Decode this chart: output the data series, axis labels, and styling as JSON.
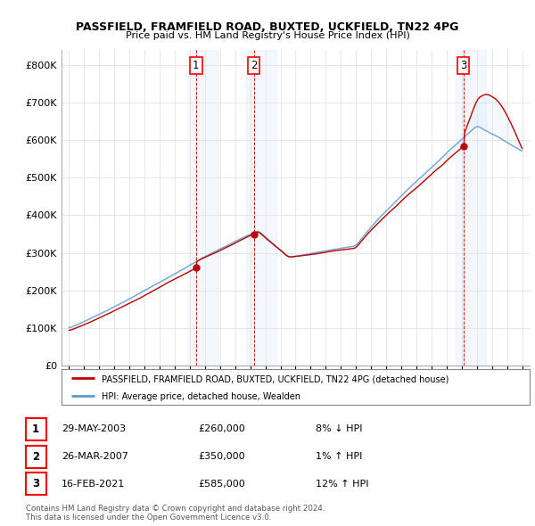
{
  "title_line1": "PASSFIELD, FRAMFIELD ROAD, BUXTED, UCKFIELD, TN22 4PG",
  "title_line2": "Price paid vs. HM Land Registry's House Price Index (HPI)",
  "ylim": [
    0,
    840000
  ],
  "yticks": [
    0,
    100000,
    200000,
    300000,
    400000,
    500000,
    600000,
    700000,
    800000
  ],
  "ytick_labels": [
    "£0",
    "£100K",
    "£200K",
    "£300K",
    "£400K",
    "£500K",
    "£600K",
    "£700K",
    "£800K"
  ],
  "xlim_start": 1994.5,
  "xlim_end": 2025.5,
  "sales": [
    {
      "date_year": 2003.41,
      "price": 260000,
      "label": "1"
    },
    {
      "date_year": 2007.23,
      "price": 350000,
      "label": "2"
    },
    {
      "date_year": 2021.12,
      "price": 585000,
      "label": "3"
    }
  ],
  "legend_entries": [
    "PASSFIELD, FRAMFIELD ROAD, BUXTED, UCKFIELD, TN22 4PG (detached house)",
    "HPI: Average price, detached house, Wealden"
  ],
  "table_rows": [
    {
      "num": "1",
      "date": "29-MAY-2003",
      "price": "£260,000",
      "hpi": "8% ↓ HPI"
    },
    {
      "num": "2",
      "date": "26-MAR-2007",
      "price": "£350,000",
      "hpi": "1% ↑ HPI"
    },
    {
      "num": "3",
      "date": "16-FEB-2021",
      "price": "£585,000",
      "hpi": "12% ↑ HPI"
    }
  ],
  "footnote": "Contains HM Land Registry data © Crown copyright and database right 2024.\nThis data is licensed under the Open Government Licence v3.0.",
  "hpi_color": "#5b9bd5",
  "price_color": "#c00000",
  "shade_color": "#ddeeff",
  "vline_color": "#cc0000",
  "background_color": "#ffffff"
}
